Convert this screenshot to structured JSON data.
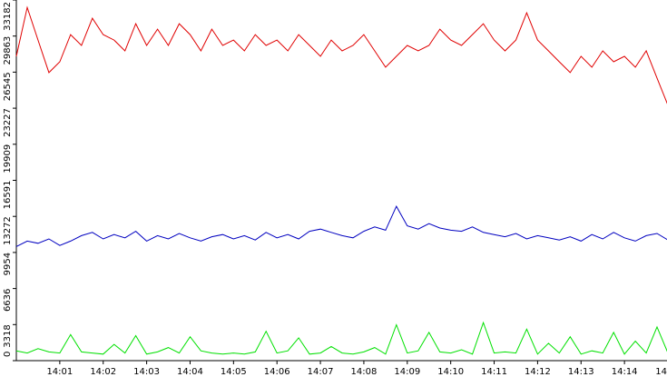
{
  "chart_data": {
    "type": "line",
    "categories": [
      null,
      null,
      null,
      null,
      "14:01",
      null,
      null,
      null,
      "14:02",
      null,
      null,
      null,
      "14:03",
      null,
      null,
      null,
      "14:04",
      null,
      null,
      null,
      "14:05",
      null,
      null,
      null,
      "14:06",
      null,
      null,
      null,
      "14:07",
      null,
      null,
      null,
      "14:08",
      null,
      null,
      null,
      "14:09",
      null,
      null,
      null,
      "14:10",
      null,
      null,
      null,
      "14:11",
      null,
      null,
      null,
      "14:12",
      null,
      null,
      null,
      "14:13",
      null,
      null,
      null,
      "14:14",
      null,
      null,
      null,
      "14"
    ],
    "series": [
      {
        "color": "#e00000",
        "values": [
          28000,
          32500,
          29500,
          26500,
          27500,
          30000,
          29000,
          31500,
          30000,
          29500,
          28500,
          31000,
          29000,
          30500,
          29000,
          31000,
          30000,
          28500,
          30500,
          29000,
          29500,
          28500,
          30000,
          29000,
          29500,
          28500,
          30000,
          29000,
          28000,
          29500,
          28500,
          29000,
          30000,
          28500,
          27000,
          28000,
          29000,
          28500,
          29000,
          30500,
          29500,
          29000,
          30000,
          31000,
          29500,
          28500,
          29500,
          32000,
          29500,
          28500,
          27500,
          26500,
          28000,
          27000,
          28500,
          27500,
          28000,
          27000,
          28500,
          26000,
          23500
        ]
      },
      {
        "color": "#0000c0",
        "values": [
          10500,
          11000,
          10800,
          11200,
          10600,
          11000,
          11500,
          11800,
          11200,
          11600,
          11300,
          11900,
          11000,
          11500,
          11200,
          11700,
          11300,
          11000,
          11400,
          11600,
          11200,
          11500,
          11100,
          11800,
          11300,
          11600,
          11200,
          11900,
          12100,
          11800,
          11500,
          11300,
          11900,
          12300,
          12000,
          14200,
          12400,
          12100,
          12600,
          12200,
          12000,
          11900,
          12300,
          11800,
          11600,
          11400,
          11700,
          11200,
          11500,
          11300,
          11100,
          11400,
          11000,
          11600,
          11200,
          11800,
          11300,
          11000,
          11500,
          11700,
          11100
        ]
      },
      {
        "color": "#00e000",
        "values": [
          900,
          700,
          1100,
          800,
          700,
          2400,
          800,
          700,
          600,
          1500,
          700,
          2300,
          600,
          800,
          1200,
          700,
          2200,
          900,
          700,
          600,
          700,
          600,
          800,
          2700,
          700,
          900,
          2100,
          600,
          700,
          1300,
          700,
          600,
          800,
          1200,
          600,
          3300,
          700,
          900,
          2600,
          800,
          700,
          1000,
          600,
          3500,
          700,
          800,
          700,
          2900,
          600,
          1600,
          700,
          2200,
          600,
          900,
          700,
          2600,
          600,
          1800,
          700,
          3100,
          700
        ]
      }
    ],
    "ylim": [
      0,
      33182
    ],
    "yticks": [
      0,
      3318,
      6636,
      9954,
      13272,
      16591,
      19909,
      23227,
      26545,
      29863,
      33182
    ]
  }
}
